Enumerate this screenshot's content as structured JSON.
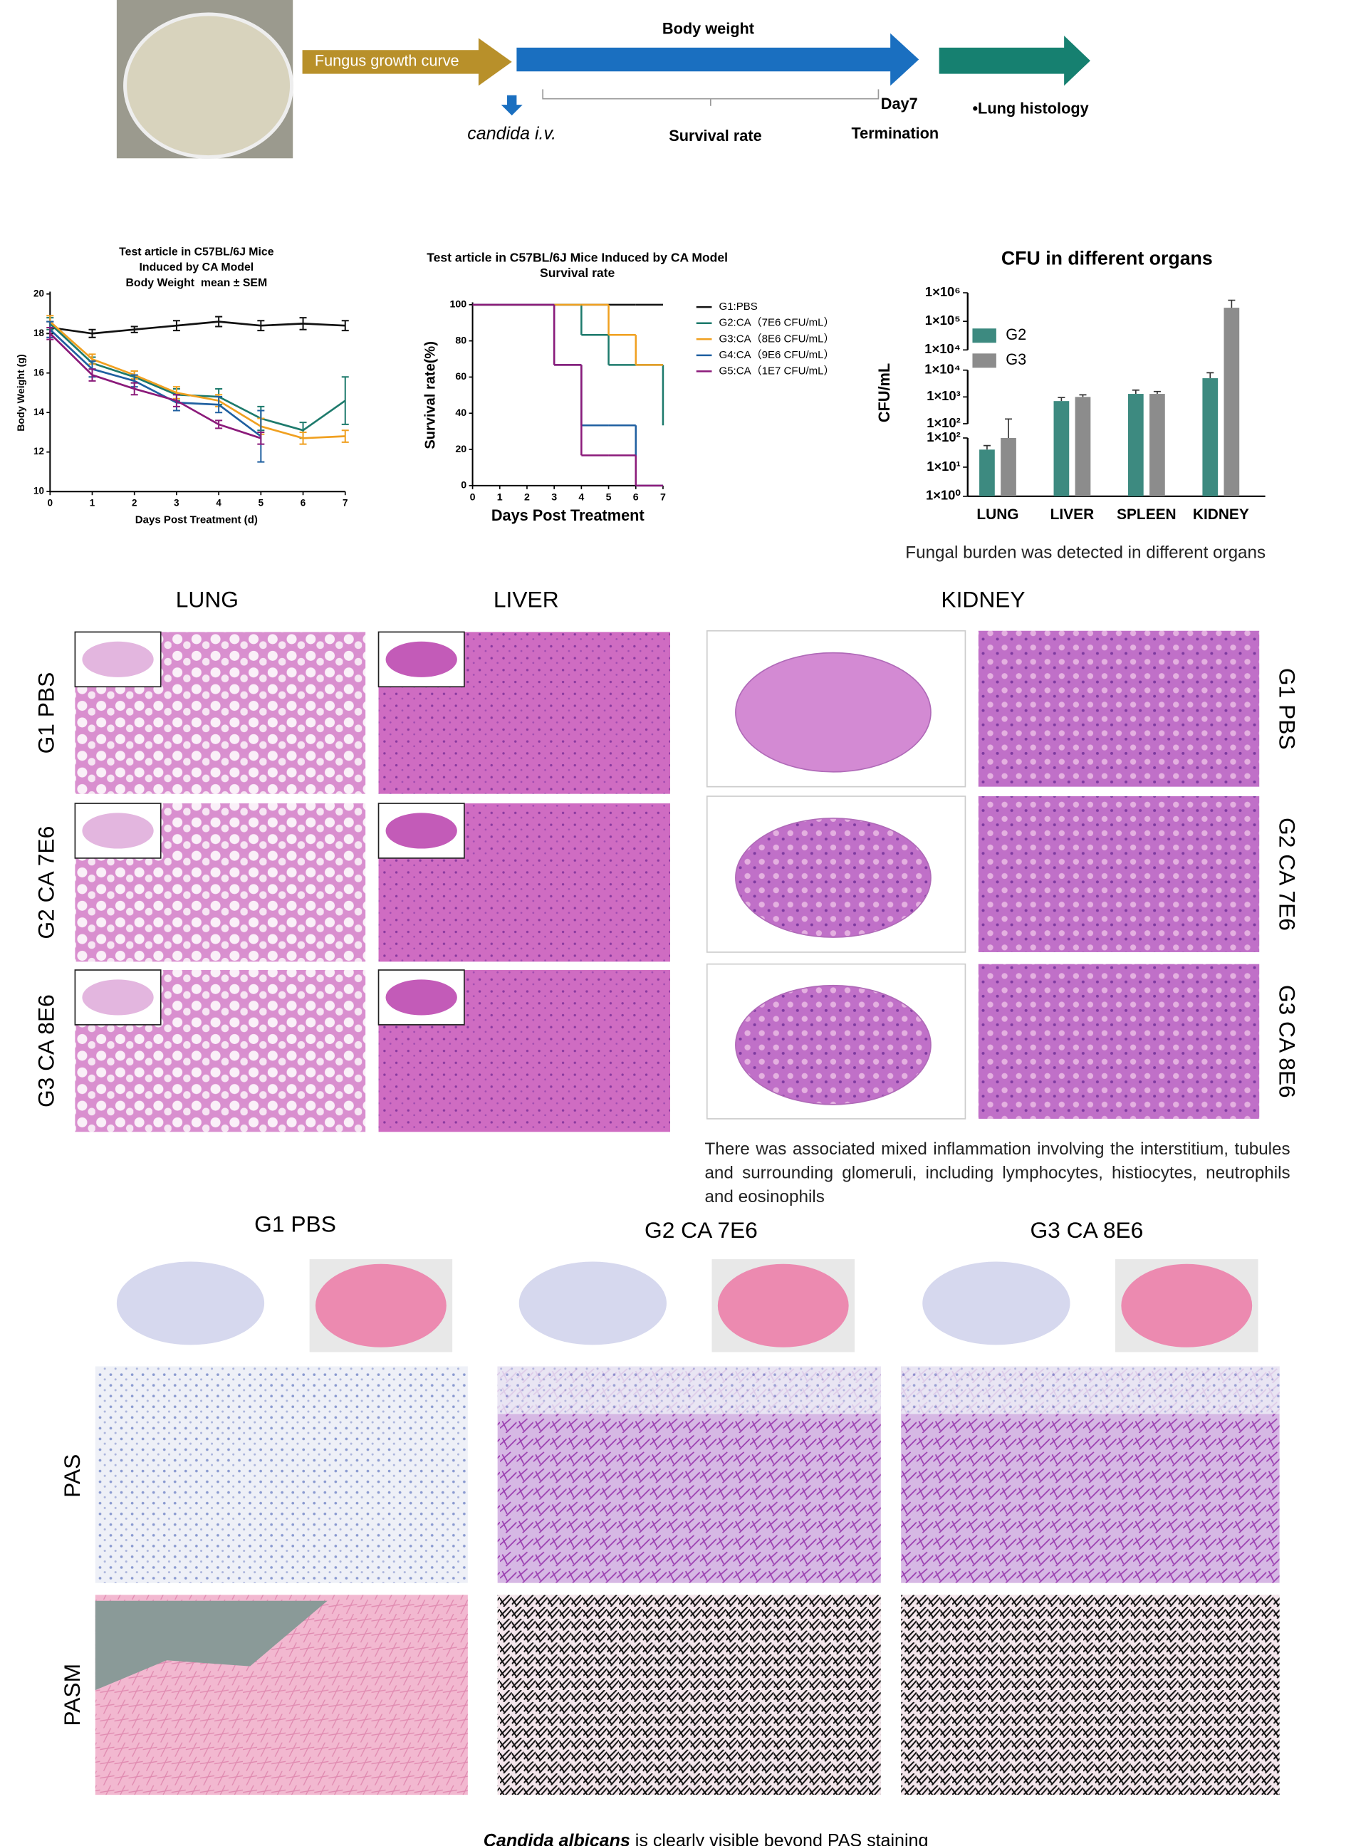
{
  "workflow": {
    "fungus": "Fungus growth curve",
    "body_weight": "Body weight",
    "injection": "candida i.v.",
    "survival": "Survival rate",
    "day": "Day7",
    "termination": "Termination",
    "histology": "•Lung histology"
  },
  "chart_data": [
    {
      "type": "line",
      "title": [
        "Test article in C57BL/6J Mice",
        "Induced by CA Model",
        "Body Weight  mean ± SEM"
      ],
      "x_label": "Days Post Treatment (d)",
      "y_label": "Body Weight (g)",
      "x": [
        0,
        1,
        2,
        3,
        4,
        5,
        6,
        7
      ],
      "xlim": [
        0,
        7
      ],
      "xticks": [
        0,
        1,
        2,
        3,
        4,
        5,
        6,
        7
      ],
      "ylim": [
        10,
        20
      ],
      "yticks": [
        10,
        12,
        14,
        16,
        18,
        20
      ],
      "series": [
        {
          "color": "#111111",
          "values": [
            18.3,
            18.0,
            18.2,
            18.4,
            18.6,
            18.4,
            18.5,
            18.4
          ],
          "errors": [
            0.3,
            0.2,
            0.15,
            0.25,
            0.25,
            0.25,
            0.3,
            0.25
          ]
        },
        {
          "color": "#1d7a6c",
          "values": [
            18.5,
            16.5,
            15.8,
            14.9,
            14.8,
            13.7,
            13.1,
            14.6
          ],
          "errors": [
            0.3,
            0.3,
            0.3,
            0.3,
            0.4,
            0.6,
            0.4,
            1.2
          ]
        },
        {
          "color": "#f0a020",
          "values": [
            18.6,
            16.7,
            15.9,
            15.0,
            14.6,
            13.3,
            12.7,
            12.8
          ],
          "errors": [
            0.3,
            0.25,
            0.2,
            0.3,
            0.3,
            0.4,
            0.3,
            0.3
          ]
        },
        {
          "color": "#1f5fa0",
          "values": [
            18.2,
            16.2,
            15.6,
            14.5,
            14.4,
            12.8,
            null,
            null
          ],
          "errors": [
            0.4,
            0.4,
            0.3,
            0.4,
            0.4,
            1.3,
            null,
            null
          ]
        },
        {
          "color": "#8b1a7a",
          "values": [
            18.0,
            15.9,
            15.2,
            14.6,
            13.4,
            12.7,
            null,
            null
          ],
          "errors": [
            0.3,
            0.3,
            0.3,
            0.3,
            0.2,
            0.3,
            null,
            null
          ]
        }
      ]
    },
    {
      "type": "step",
      "title": [
        "Test article in C57BL/6J Mice Induced by CA Model",
        "Survival rate"
      ],
      "x_label": "Days Post Treatment",
      "y_label": "Survival rate(%)",
      "x": [
        0,
        1,
        2,
        3,
        4,
        5,
        6,
        7
      ],
      "xlim": [
        0,
        7
      ],
      "xticks": [
        0,
        1,
        2,
        3,
        4,
        5,
        6,
        7
      ],
      "ylim": [
        0,
        100
      ],
      "yticks": [
        0,
        20,
        40,
        60,
        80,
        100
      ],
      "series": [
        {
          "name": "G1:PBS",
          "color": "#111111",
          "values": [
            100,
            100,
            100,
            100,
            100,
            100,
            100,
            100
          ]
        },
        {
          "name": "G2:CA（7E6 CFU/mL）",
          "color": "#1d7a6c",
          "values": [
            100,
            100,
            100,
            100,
            83.3,
            66.7,
            66.7,
            33.3
          ]
        },
        {
          "name": "G3:CA（8E6 CFU/mL）",
          "color": "#f0a020",
          "values": [
            100,
            100,
            100,
            100,
            100,
            83.3,
            66.7,
            66.7
          ]
        },
        {
          "name": "G4:CA（9E6 CFU/mL）",
          "color": "#1f5fa0",
          "values": [
            100,
            100,
            100,
            66.7,
            33.3,
            33.3,
            0,
            null
          ]
        },
        {
          "name": "G5:CA（1E7 CFU/mL）",
          "color": "#8b1a7a",
          "values": [
            100,
            100,
            100,
            66.7,
            16.7,
            16.7,
            0,
            null
          ]
        }
      ]
    },
    {
      "type": "bar",
      "log_scale": true,
      "title": "CFU in different organs",
      "y_label": "CFU/mL",
      "categories": [
        "LUNG",
        "LIVER",
        "SPLEEN",
        "KIDNEY"
      ],
      "ylim": [
        1,
        1000000
      ],
      "y_segments": [
        {
          "ylim": [
            1,
            100
          ],
          "yticks": [
            {
              "value": 1,
              "label": "1×10⁰"
            },
            {
              "value": 10,
              "label": "1×10¹"
            },
            {
              "value": 100,
              "label": "1×10²"
            }
          ]
        },
        {
          "ylim": [
            100,
            10000
          ],
          "yticks": [
            {
              "value": 100,
              "label": "1×10²"
            },
            {
              "value": 1000,
              "label": "1×10³"
            },
            {
              "value": 10000,
              "label": "1×10⁴"
            }
          ]
        },
        {
          "ylim": [
            10000,
            1000000
          ],
          "yticks": [
            {
              "value": 10000,
              "label": "1×10⁴"
            },
            {
              "value": 100000,
              "label": "1×10⁵"
            },
            {
              "value": 1000000,
              "label": "1×10⁶"
            }
          ]
        }
      ],
      "legend": "upper left",
      "series": [
        {
          "name": "G2",
          "color": "#3d8a80",
          "values": [
            40,
            700,
            1300,
            5000
          ],
          "errors": [
            15,
            250,
            500,
            3000
          ]
        },
        {
          "name": "G3",
          "color": "#8c8c8c",
          "values": [
            100,
            1000,
            1300,
            300000
          ],
          "errors": [
            50,
            200,
            300,
            250000
          ]
        }
      ],
      "caption": "Fungal burden was detected in different organs"
    }
  ],
  "histology": {
    "columns": [
      "LUNG",
      "LIVER",
      "KIDNEY"
    ],
    "rows": [
      "G1 PBS",
      "G2 CA 7E6",
      "G3 CA 8E6"
    ],
    "caption": "There was associated mixed inflammation involving the interstitium, tubules and surrounding glomeruli, including lymphocytes, histiocytes, neutrophils and eosinophils"
  },
  "staining": {
    "groups": [
      "G1 PBS",
      "G2 CA 7E6",
      "G3 CA 8E6"
    ],
    "stains": [
      "PAS",
      "PASM"
    ],
    "caption_italic": "Candida albicans",
    "caption_rest": " is clearly visible beyond PAS staining"
  }
}
